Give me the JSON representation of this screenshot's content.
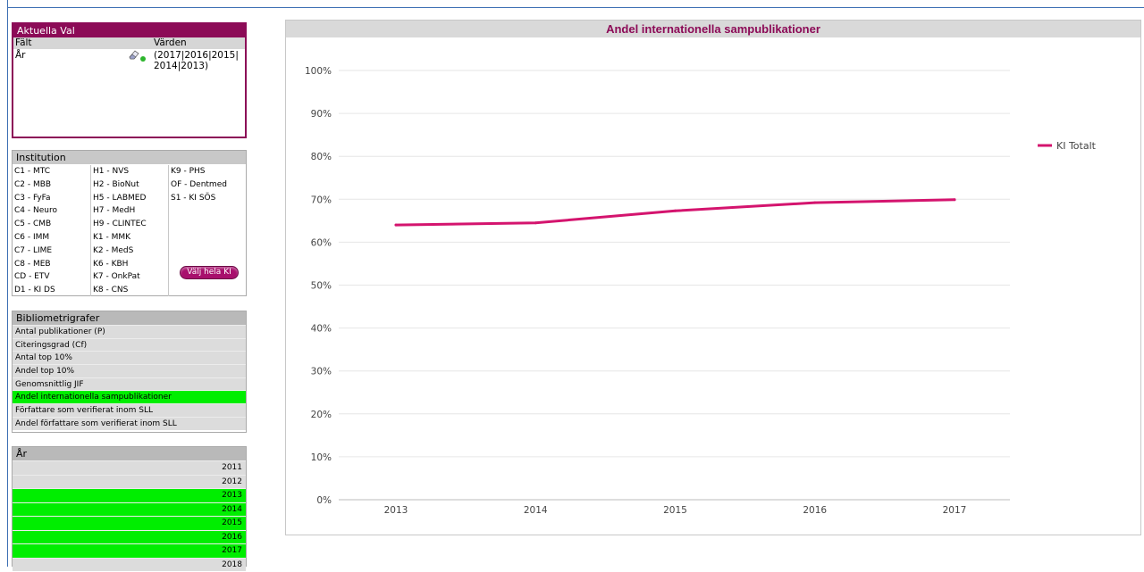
{
  "current_selections": {
    "title": "Aktuella Val",
    "col_field": "Fält",
    "col_values": "Värden",
    "rows": [
      {
        "field": "År",
        "values_line1": "(2017|2016|2015|",
        "values_line2": "2014|2013)"
      }
    ]
  },
  "institution": {
    "title": "Institution",
    "col1": [
      "C1 - MTC",
      "C2 - MBB",
      "C3 - FyFa",
      "C4 - Neuro",
      "C5 - CMB",
      "C6 - IMM",
      "C7 - LIME",
      "C8 - MEB",
      "CD - ETV",
      "D1 - KI DS"
    ],
    "col2": [
      "H1 - NVS",
      "H2 - BioNut",
      "H5 - LABMED",
      "H7 - MedH",
      "H9 - CLINTEC",
      "K1 - MMK",
      "K2 - MedS",
      "K6 - KBH",
      "K7 - OnkPat",
      "K8 - CNS"
    ],
    "col3": [
      "K9 - PHS",
      "OF - Dentmed",
      "S1 - KI SÖS"
    ],
    "button_label": "Välj hela KI"
  },
  "bibliometrigrafer": {
    "title": "Bibliometrigrafer",
    "items": [
      {
        "label": "Antal publikationer (P)",
        "selected": false
      },
      {
        "label": "Citeringsgrad (Cf)",
        "selected": false
      },
      {
        "label": "Antal top 10%",
        "selected": false
      },
      {
        "label": "Andel top 10%",
        "selected": false
      },
      {
        "label": "Genomsnittlig JIF",
        "selected": false
      },
      {
        "label": "Andel internationella sampublikationer",
        "selected": true
      },
      {
        "label": "Författare som verifierat inom SLL",
        "selected": false
      },
      {
        "label": "Andel författare som verifierat inom SLL",
        "selected": false
      }
    ]
  },
  "year": {
    "title": "År",
    "items": [
      {
        "label": "2011",
        "selected": false
      },
      {
        "label": "2012",
        "selected": false
      },
      {
        "label": "2013",
        "selected": true
      },
      {
        "label": "2014",
        "selected": true
      },
      {
        "label": "2015",
        "selected": true
      },
      {
        "label": "2016",
        "selected": true
      },
      {
        "label": "2017",
        "selected": true
      },
      {
        "label": "2018",
        "selected": false
      }
    ]
  },
  "colors": {
    "accent": "#8c0b57",
    "series": "#d4146e",
    "selected": "#00ee00"
  },
  "chart_data": {
    "type": "line",
    "title": "Andel internationella sampublikationer",
    "x": [
      "2013",
      "2014",
      "2015",
      "2016",
      "2017"
    ],
    "series": [
      {
        "name": "KI Totalt",
        "values": [
          0.64,
          0.645,
          0.673,
          0.692,
          0.699
        ]
      }
    ],
    "ylim": [
      0,
      1
    ],
    "yticks": [
      "0%",
      "10%",
      "20%",
      "30%",
      "40%",
      "50%",
      "60%",
      "70%",
      "80%",
      "90%",
      "100%"
    ],
    "grid": true,
    "legend": "right"
  }
}
